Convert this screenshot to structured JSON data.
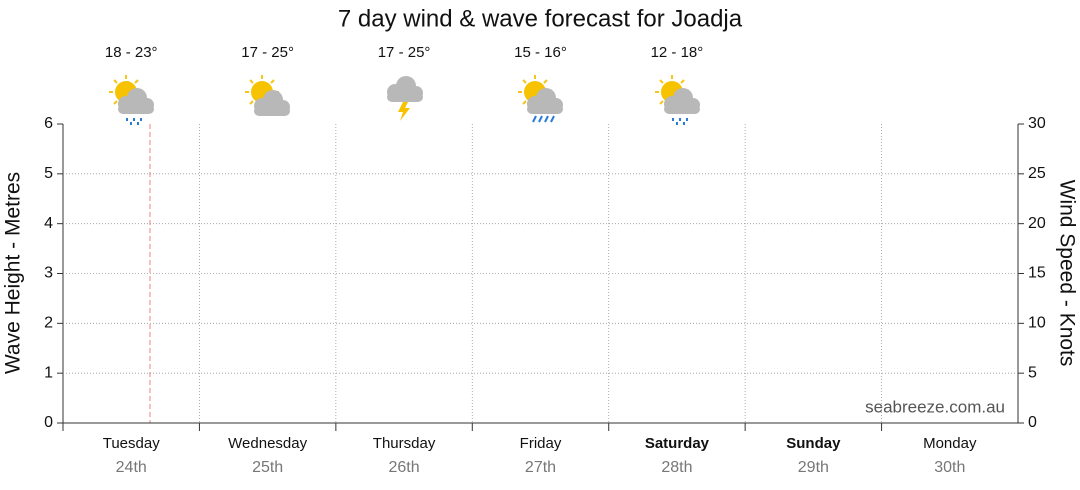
{
  "chart_data": {
    "type": "line",
    "title": "7 day wind & wave forecast for Joadja",
    "y_label": "Wave Height - Metres",
    "y2_label": "Wind Speed - Knots",
    "categories": [
      "Tuesday",
      "Wednesday",
      "Thursday",
      "Friday",
      "Saturday",
      "Sunday",
      "Monday"
    ],
    "dates": [
      "24th",
      "25th",
      "26th",
      "27th",
      "28th",
      "29th",
      "30th"
    ],
    "temperatures": [
      "18 - 23°",
      "17 - 25°",
      "17 - 25°",
      "15 - 16°",
      "12 - 18°"
    ],
    "ylim": [
      0,
      6
    ],
    "yticks": [
      0,
      1,
      2,
      3,
      4,
      5,
      6
    ],
    "y2lim": [
      0,
      30
    ],
    "y2ticks": [
      0,
      5,
      10,
      15,
      20,
      25,
      30
    ],
    "grid": true,
    "watermark": "seabreeze.com.au"
  }
}
